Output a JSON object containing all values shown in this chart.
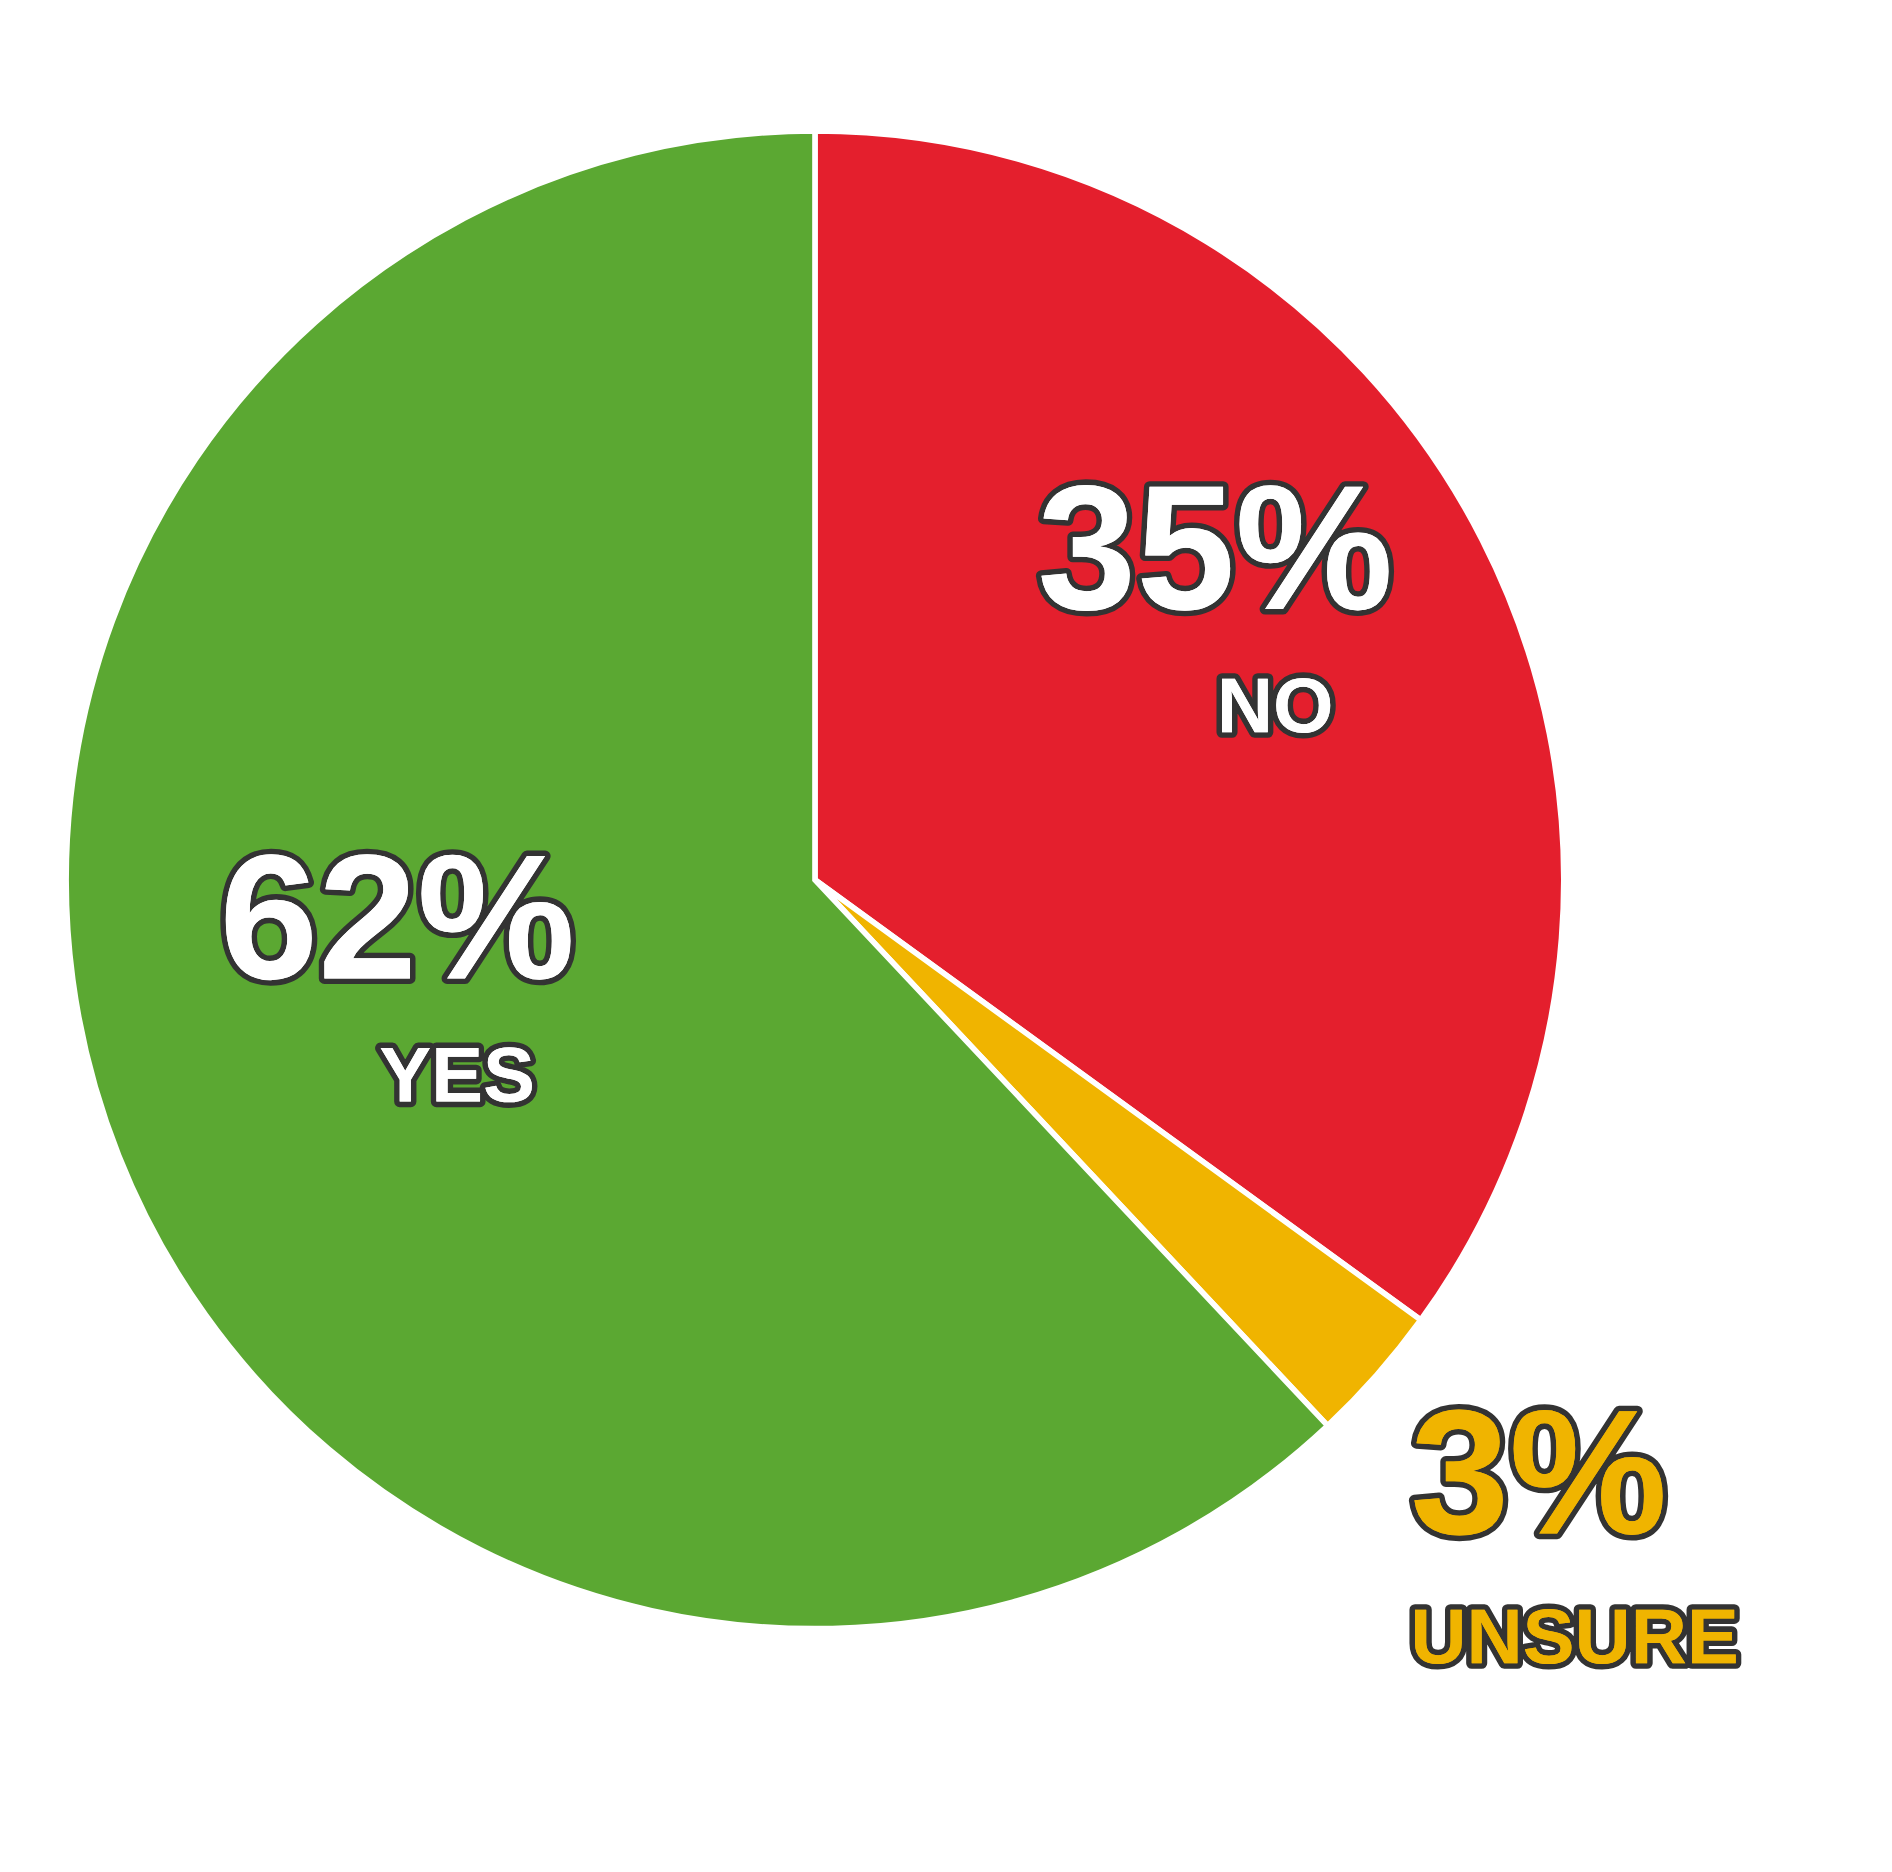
{
  "chart_data": {
    "type": "pie",
    "categories": [
      "NO",
      "UNSURE",
      "YES"
    ],
    "values": [
      35,
      3,
      62
    ],
    "value_labels": [
      "35%",
      "3%",
      "62%"
    ],
    "colors": [
      "#e41f2d",
      "#f0b400",
      "#5ba832"
    ]
  }
}
